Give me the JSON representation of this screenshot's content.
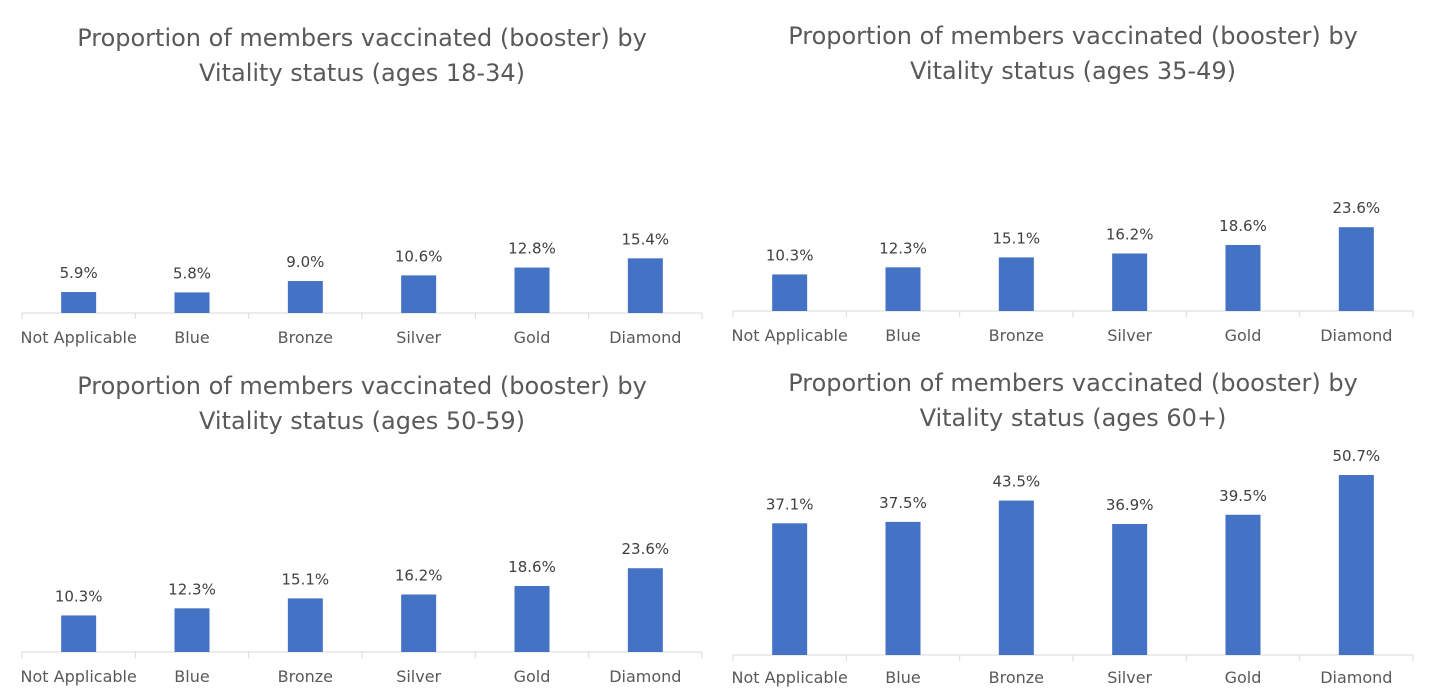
{
  "bar_color": "#4472c4",
  "axis_color": "#d9d9d9",
  "text_color": "#595959",
  "chart_data": [
    {
      "type": "bar",
      "title_lines": [
        "Proportion of members vaccinated (booster) by",
        "Vitality status (ages 18-34)"
      ],
      "categories": [
        "Not Applicable",
        "Blue",
        "Bronze",
        "Silver",
        "Gold",
        "Diamond"
      ],
      "values": [
        5.9,
        5.8,
        9.0,
        10.6,
        12.8,
        15.4
      ],
      "value_labels": [
        "5.9%",
        "5.8%",
        "9.0%",
        "10.6%",
        "12.8%",
        "15.4%"
      ],
      "grid": false,
      "legend": "none"
    },
    {
      "type": "bar",
      "title_lines": [
        "Proportion of members vaccinated (booster) by",
        "Vitality status (ages 35-49)"
      ],
      "categories": [
        "Not Applicable",
        "Blue",
        "Bronze",
        "Silver",
        "Gold",
        "Diamond"
      ],
      "values": [
        10.3,
        12.3,
        15.1,
        16.2,
        18.6,
        23.6
      ],
      "value_labels": [
        "10.3%",
        "12.3%",
        "15.1%",
        "16.2%",
        "18.6%",
        "23.6%"
      ],
      "grid": false,
      "legend": "none"
    },
    {
      "type": "bar",
      "title_lines": [
        "Proportion of members vaccinated (booster) by",
        "Vitality status (ages 50-59)"
      ],
      "categories": [
        "Not Applicable",
        "Blue",
        "Bronze",
        "Silver",
        "Gold",
        "Diamond"
      ],
      "values": [
        10.3,
        12.3,
        15.1,
        16.2,
        18.6,
        23.6
      ],
      "value_labels": [
        "10.3%",
        "12.3%",
        "15.1%",
        "16.2%",
        "18.6%",
        "23.6%"
      ],
      "grid": false,
      "legend": "none"
    },
    {
      "type": "bar",
      "title_lines": [
        "Proportion of members vaccinated (booster) by",
        "Vitality status (ages 60+)"
      ],
      "categories": [
        "Not Applicable",
        "Blue",
        "Bronze",
        "Silver",
        "Gold",
        "Diamond"
      ],
      "values": [
        37.1,
        37.5,
        43.5,
        36.9,
        39.5,
        50.7
      ],
      "value_labels": [
        "37.1%",
        "37.5%",
        "43.5%",
        "36.9%",
        "39.5%",
        "50.7%"
      ],
      "grid": false,
      "legend": "none"
    }
  ]
}
